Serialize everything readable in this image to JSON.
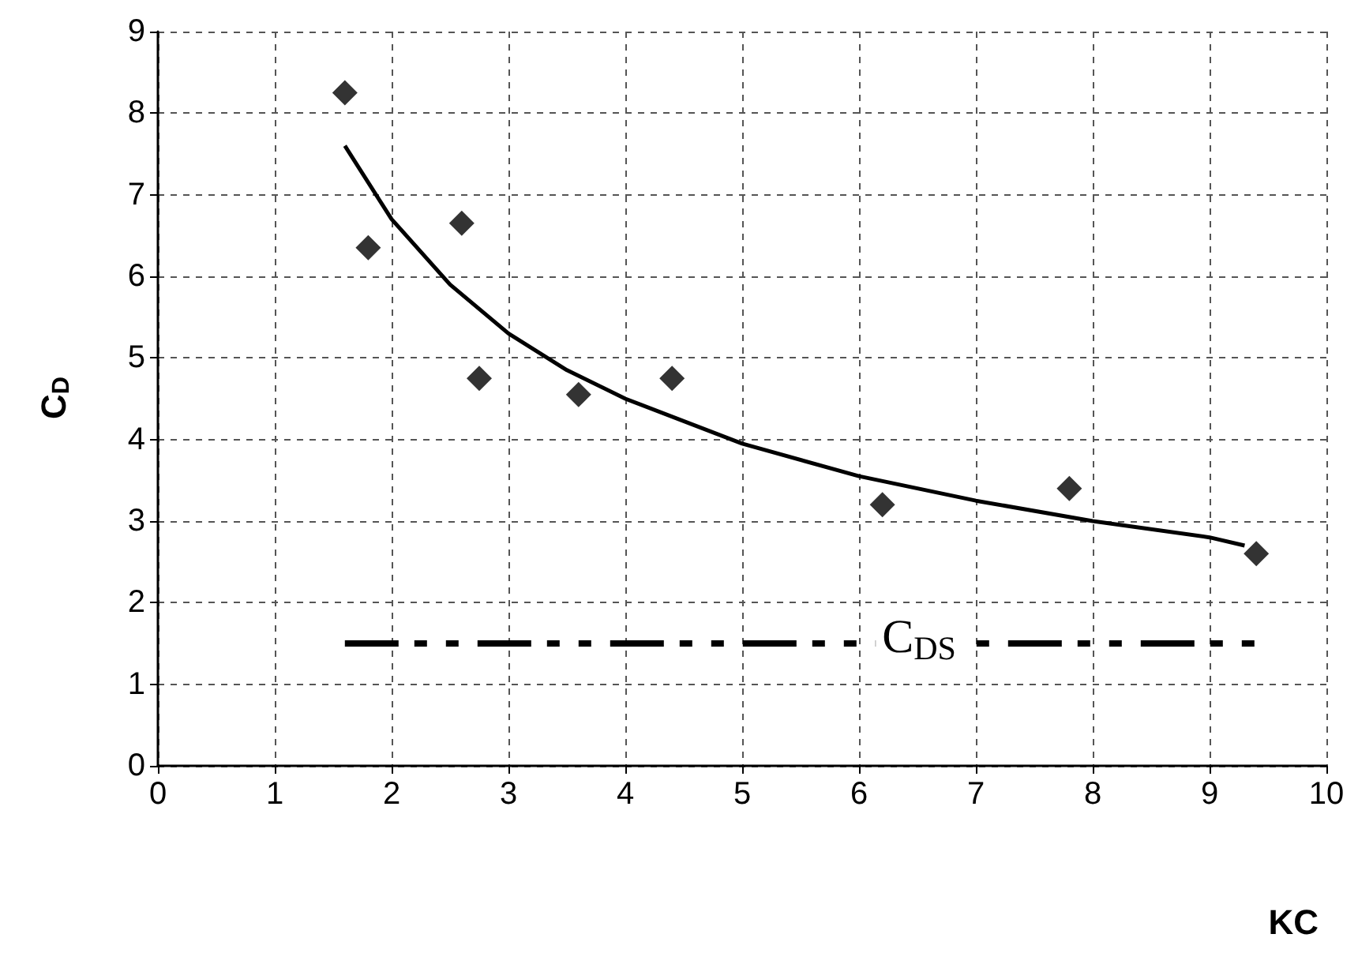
{
  "chart_data": {
    "type": "scatter",
    "xlabel": "KC",
    "ylabel": "C$_{D}$",
    "xlim": [
      0,
      10
    ],
    "xticks": [
      0,
      1,
      2,
      3,
      4,
      5,
      6,
      7,
      8,
      9,
      10
    ],
    "ylim": [
      0,
      9
    ],
    "yticks": [
      0,
      1,
      2,
      3,
      4,
      5,
      6,
      7,
      8,
      9
    ],
    "grid": true,
    "legend": false,
    "series": [
      {
        "marker": "diamond",
        "color": "#000000",
        "x": [
          1.6,
          1.8,
          2.6,
          2.75,
          3.6,
          4.4,
          6.2,
          7.8,
          9.4
        ],
        "values": [
          8.25,
          6.35,
          6.65,
          4.75,
          4.55,
          4.75,
          3.2,
          3.4,
          2.6
        ]
      },
      {
        "type": "line",
        "marker": "none",
        "line_style": "solid",
        "color": "#000000",
        "x": [
          1.6,
          2,
          2.5,
          3,
          3.5,
          4,
          5,
          6,
          7,
          8,
          9,
          9.3
        ],
        "values": [
          7.6,
          6.7,
          5.9,
          5.3,
          4.85,
          4.5,
          3.95,
          3.55,
          3.25,
          3.0,
          2.8,
          2.7
        ]
      },
      {
        "type": "line",
        "name": "C$_{DS}$",
        "marker": "none",
        "line_style": "dashed",
        "color": "#000000",
        "x": [
          1.6,
          9.4
        ],
        "values": [
          1.5,
          1.5
        ]
      }
    ]
  }
}
